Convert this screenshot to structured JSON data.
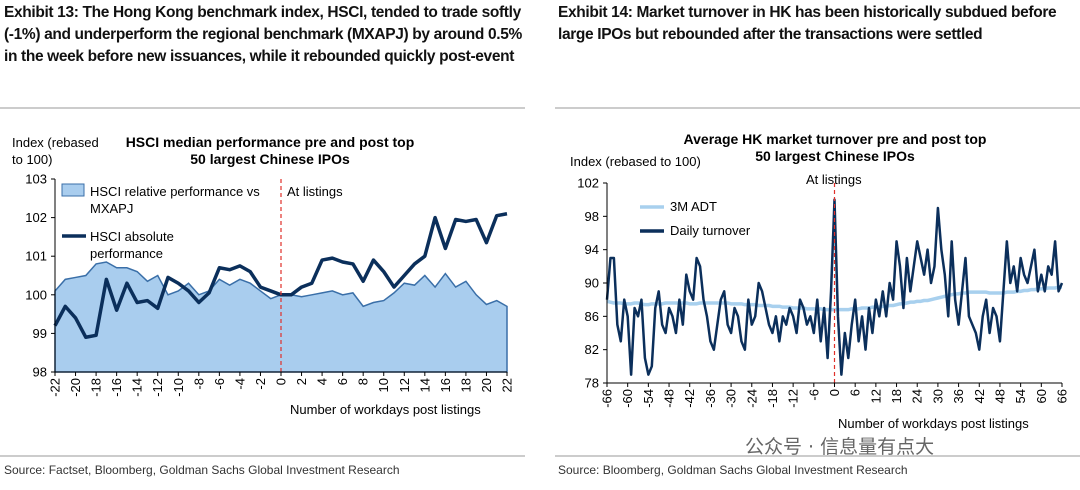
{
  "exhibits": [
    {
      "heading": "Exhibit 13: The Hong Kong benchmark index, HSCI, tended to trade softly (-1%) and underperform the regional benchmark (MXAPJ) by around 0.5% in the week before new issuances, while it rebounded quickly post-event",
      "source": "Source: Factset, Bloomberg, Goldman Sachs Global Investment Research"
    },
    {
      "heading": "Exhibit 14: Market turnover in HK has been historically subdued before large IPOs but rebounded after the transactions were settled",
      "source": "Source: Bloomberg, Goldman Sachs Global Investment Research"
    }
  ],
  "watermark": "公众号 · 信息量有点大",
  "chart_data": [
    {
      "type": "line",
      "title": "HSCI median performance pre and post top 50 largest Chinese IPOs",
      "y_label": "Index (rebased to 100)",
      "x_label": "Number of workdays post listings",
      "annotation": "At listings",
      "annotation_x": 0,
      "x": [
        -22,
        -21,
        -20,
        -19,
        -18,
        -17,
        -16,
        -15,
        -14,
        -13,
        -12,
        -11,
        -10,
        -9,
        -8,
        -7,
        -6,
        -5,
        -4,
        -3,
        -2,
        -1,
        0,
        1,
        2,
        3,
        4,
        5,
        6,
        7,
        8,
        9,
        10,
        11,
        12,
        13,
        14,
        15,
        16,
        17,
        18,
        19,
        20,
        21,
        22
      ],
      "xlim": [
        -22,
        22
      ],
      "xticks": [
        -22,
        -20,
        -18,
        -16,
        -14,
        -12,
        -10,
        -8,
        -6,
        -4,
        -2,
        0,
        2,
        4,
        6,
        8,
        10,
        12,
        14,
        16,
        18,
        20,
        22
      ],
      "ylim": [
        98,
        103
      ],
      "yticks": [
        98,
        99,
        100,
        101,
        102,
        103
      ],
      "series": [
        {
          "name": "HSCI relative performance vs MXAPJ",
          "type": "area",
          "color": "#a9cdee",
          "values": [
            100.1,
            100.4,
            100.45,
            100.5,
            100.8,
            100.85,
            100.7,
            100.7,
            100.6,
            100.35,
            100.5,
            100.0,
            100.1,
            100.3,
            100.0,
            100.1,
            100.4,
            100.25,
            100.4,
            100.3,
            100.1,
            99.9,
            100.0,
            100.0,
            99.95,
            100.0,
            100.05,
            100.1,
            100.0,
            100.05,
            99.7,
            99.8,
            99.85,
            100.05,
            100.3,
            100.25,
            100.5,
            100.2,
            100.55,
            100.2,
            100.35,
            100.0,
            99.75,
            99.85,
            99.7
          ]
        },
        {
          "name": "HSCI absolute performance",
          "type": "line",
          "color": "#0b2f5b",
          "values": [
            99.2,
            99.7,
            99.4,
            98.9,
            98.95,
            100.4,
            99.6,
            100.3,
            99.8,
            99.85,
            99.65,
            100.45,
            100.3,
            100.1,
            99.8,
            100.05,
            100.7,
            100.65,
            100.75,
            100.6,
            100.2,
            100.1,
            100.0,
            100.0,
            100.2,
            100.3,
            100.9,
            100.95,
            100.85,
            100.8,
            100.35,
            100.9,
            100.6,
            100.2,
            100.5,
            100.8,
            101.0,
            102.0,
            101.2,
            101.95,
            101.9,
            101.95,
            101.35,
            102.05,
            102.1
          ]
        }
      ]
    },
    {
      "type": "line",
      "title": "Average HK market turnover pre and post top 50 largest Chinese IPOs",
      "y_label": "Index (rebased to 100)",
      "x_label": "Number of workdays post listings",
      "annotation": "At listings",
      "annotation_x": 0,
      "x": [
        -66,
        -65,
        -64,
        -63,
        -62,
        -61,
        -60,
        -59,
        -58,
        -57,
        -56,
        -55,
        -54,
        -53,
        -52,
        -51,
        -50,
        -49,
        -48,
        -47,
        -46,
        -45,
        -44,
        -43,
        -42,
        -41,
        -40,
        -39,
        -38,
        -37,
        -36,
        -35,
        -34,
        -33,
        -32,
        -31,
        -30,
        -29,
        -28,
        -27,
        -26,
        -25,
        -24,
        -23,
        -22,
        -21,
        -20,
        -19,
        -18,
        -17,
        -16,
        -15,
        -14,
        -13,
        -12,
        -11,
        -10,
        -9,
        -8,
        -7,
        -6,
        -5,
        -4,
        -3,
        -2,
        -1,
        0,
        1,
        2,
        3,
        4,
        5,
        6,
        7,
        8,
        9,
        10,
        11,
        12,
        13,
        14,
        15,
        16,
        17,
        18,
        19,
        20,
        21,
        22,
        23,
        24,
        25,
        26,
        27,
        28,
        29,
        30,
        31,
        32,
        33,
        34,
        35,
        36,
        37,
        38,
        39,
        40,
        41,
        42,
        43,
        44,
        45,
        46,
        47,
        48,
        49,
        50,
        51,
        52,
        53,
        54,
        55,
        56,
        57,
        58,
        59,
        60,
        61,
        62,
        63,
        64,
        65,
        66
      ],
      "xlim": [
        -66,
        66
      ],
      "xticks": [
        -66,
        -60,
        -54,
        -48,
        -42,
        -36,
        -30,
        -24,
        -18,
        -12,
        -6,
        0,
        6,
        12,
        18,
        24,
        30,
        36,
        42,
        48,
        54,
        60,
        66
      ],
      "ylim": [
        78,
        102
      ],
      "yticks": [
        78,
        82,
        86,
        90,
        94,
        98,
        102
      ],
      "series": [
        {
          "name": "3M ADT",
          "type": "line",
          "color": "#a8d0ee",
          "values": [
            87.8,
            87.7,
            87.6,
            87.6,
            87.6,
            87.5,
            87.5,
            87.5,
            87.6,
            87.6,
            87.5,
            87.4,
            87.4,
            87.5,
            87.5,
            87.5,
            87.5,
            87.6,
            87.6,
            87.6,
            87.6,
            87.6,
            87.6,
            87.6,
            87.5,
            87.5,
            87.5,
            87.6,
            87.6,
            87.6,
            87.6,
            87.6,
            87.6,
            87.6,
            87.6,
            87.6,
            87.5,
            87.5,
            87.5,
            87.5,
            87.4,
            87.4,
            87.4,
            87.4,
            87.3,
            87.3,
            87.3,
            87.3,
            87.2,
            87.2,
            87.2,
            87.1,
            87.1,
            87.1,
            87.0,
            87.0,
            87.0,
            87.0,
            86.9,
            86.9,
            86.9,
            86.9,
            86.9,
            86.8,
            86.8,
            86.8,
            86.8,
            86.8,
            86.8,
            86.8,
            86.8,
            86.9,
            86.9,
            86.9,
            87.0,
            87.0,
            87.0,
            87.1,
            87.1,
            87.1,
            87.2,
            87.2,
            87.3,
            87.3,
            87.4,
            87.5,
            87.5,
            87.6,
            87.7,
            87.7,
            87.8,
            87.8,
            87.9,
            87.9,
            88.0,
            88.1,
            88.2,
            88.3,
            88.4,
            88.5,
            88.6,
            88.7,
            88.7,
            88.8,
            88.8,
            88.9,
            88.9,
            88.9,
            88.9,
            88.9,
            88.9,
            88.8,
            88.8,
            88.8,
            88.8,
            88.8,
            88.9,
            88.9,
            88.9,
            89.0,
            89.0,
            89.1,
            89.1,
            89.2,
            89.2,
            89.3,
            89.3,
            89.3,
            89.4,
            89.4,
            89.4,
            89.5,
            89.5
          ]
        },
        {
          "name": "Daily turnover",
          "type": "line",
          "color": "#0b2f5b",
          "values": [
            88,
            93,
            93,
            85,
            83,
            88,
            86,
            79,
            87,
            86,
            88,
            81,
            79,
            80,
            87,
            89,
            85,
            84,
            87,
            86,
            84,
            88,
            85,
            91,
            89,
            88,
            93,
            92,
            88,
            86,
            83,
            82,
            85,
            88,
            89,
            85,
            84,
            87,
            86,
            83,
            82,
            88,
            85,
            86,
            90,
            89,
            87,
            85,
            84,
            86,
            83,
            86,
            85,
            87,
            86,
            84,
            88,
            87,
            85,
            86,
            84,
            88,
            83,
            87,
            81,
            89,
            100,
            86,
            79,
            84,
            81,
            85,
            88,
            83,
            86,
            82,
            87,
            84,
            88,
            86,
            89,
            86,
            90,
            88,
            95,
            92,
            87,
            93,
            89,
            92,
            95,
            93,
            91,
            94,
            90,
            92,
            99,
            94,
            91,
            86,
            95,
            88,
            85,
            89,
            93,
            86,
            85,
            84,
            82,
            86,
            88,
            84,
            87,
            86,
            83,
            89,
            95,
            90,
            92,
            89,
            93,
            91,
            90,
            92,
            94,
            89,
            91,
            89,
            92,
            91,
            95,
            89,
            90
          ]
        }
      ]
    }
  ]
}
